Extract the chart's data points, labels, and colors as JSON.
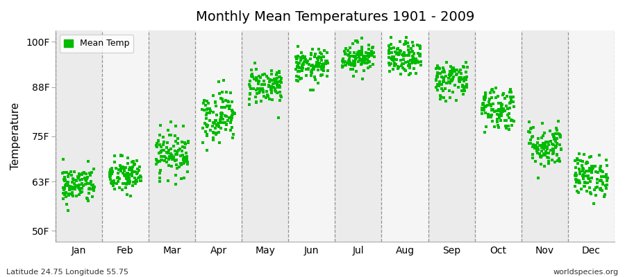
{
  "title": "Monthly Mean Temperatures 1901 - 2009",
  "ylabel": "Temperature",
  "xlabel_labels": [
    "Jan",
    "Feb",
    "Mar",
    "Apr",
    "May",
    "Jun",
    "Jul",
    "Aug",
    "Sep",
    "Oct",
    "Nov",
    "Dec"
  ],
  "ytick_labels": [
    "50F",
    "63F",
    "75F",
    "88F",
    "100F"
  ],
  "ytick_values": [
    50,
    63,
    75,
    88,
    100
  ],
  "ylim": [
    47,
    103
  ],
  "dot_color": "#00bb00",
  "dot_size": 7,
  "background_color": "#ffffff",
  "plot_bg_color_light": "#ebebeb",
  "plot_bg_color_dark": "#f5f5f5",
  "footer_left": "Latitude 24.75 Longitude 55.75",
  "footer_right": "worldspecies.org",
  "legend_label": "Mean Temp",
  "n_years": 109,
  "monthly_means": [
    62.0,
    64.5,
    70.5,
    80.5,
    88.5,
    93.5,
    96.0,
    95.5,
    90.0,
    82.5,
    72.5,
    64.5
  ],
  "monthly_stds": [
    2.5,
    2.5,
    3.0,
    3.5,
    2.5,
    2.2,
    2.0,
    2.2,
    2.5,
    3.0,
    3.0,
    2.8
  ]
}
